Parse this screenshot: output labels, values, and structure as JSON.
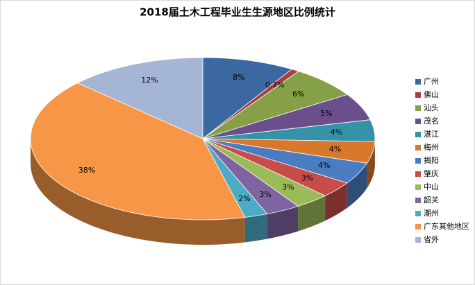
{
  "chart_data": {
    "type": "pie",
    "title": "2018届土木工程毕业生生源地区比例统计",
    "categories": [
      "广州",
      "佛山",
      "汕头",
      "茂名",
      "湛江",
      "梅州",
      "揭阳",
      "肇庆",
      "中山",
      "韶关",
      "潮州",
      "广东其他地区",
      "省外"
    ],
    "values": [
      8,
      0.7,
      6,
      5,
      4,
      4,
      4,
      3,
      3,
      3,
      2,
      38,
      12
    ],
    "value_labels": [
      "8%",
      "0.7%",
      "6%",
      "5%",
      "4%",
      "4%",
      "4%",
      "3%",
      "3%",
      "3%",
      "2%",
      "38%",
      "12%"
    ],
    "colors": [
      "#3b68a0",
      "#a4403d",
      "#85a046",
      "#6b4f8c",
      "#3592a8",
      "#d7782d",
      "#4a7cc1",
      "#c84d4a",
      "#9bbb59",
      "#8064a2",
      "#4bacc6",
      "#f79646",
      "#a5b6d4"
    ],
    "legend": "right"
  }
}
